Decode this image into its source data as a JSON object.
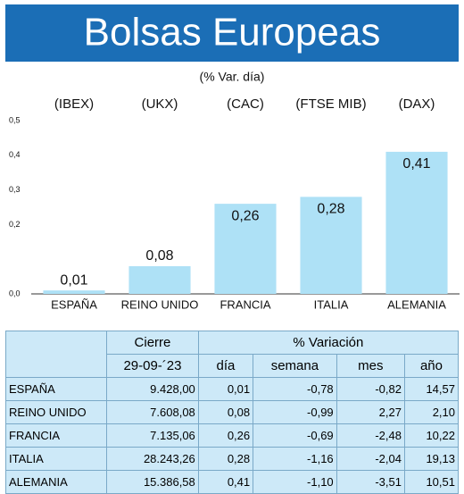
{
  "chart_data": {
    "type": "bar",
    "title": "Bolsas Europeas",
    "subtitle": "(% Var. día)",
    "index_labels": [
      "(IBEX)",
      "(UKX)",
      "(CAC)",
      "(FTSE MIB)",
      "(DAX)"
    ],
    "categories": [
      "ESPAÑA",
      "REINO UNIDO",
      "FRANCIA",
      "ITALIA",
      "ALEMANIA"
    ],
    "values": [
      0.01,
      0.08,
      0.26,
      0.28,
      0.41
    ],
    "value_labels": [
      "0,01",
      "0,08",
      "0,26",
      "0,28",
      "0,41"
    ],
    "color": "#aee1f6",
    "ylim": [
      0,
      0.5
    ],
    "yticks": [
      {
        "value": 0,
        "label": "0,0"
      },
      {
        "value": 0.2,
        "label": "0,2"
      },
      {
        "value": 0.3,
        "label": "0,3"
      },
      {
        "value": 0.4,
        "label": "0,4"
      },
      {
        "value": 0.5,
        "label": "0,5"
      }
    ],
    "grid": false
  },
  "table": {
    "header": [
      "Cierre",
      "% Variación"
    ],
    "subheader": [
      "29-09-´23",
      "día",
      "semana",
      "mes",
      "año"
    ],
    "rows": [
      [
        "ESPAÑA",
        "9.428,00",
        "0,01",
        "-0,78",
        "-0,82",
        "14,57"
      ],
      [
        "REINO UNIDO",
        "7.608,08",
        "0,08",
        "-0,99",
        "2,27",
        "2,10"
      ],
      [
        "FRANCIA",
        "7.135,06",
        "0,26",
        "-0,69",
        "-2,48",
        "10,22"
      ],
      [
        "ITALIA",
        "28.243,26",
        "0,28",
        "-1,16",
        "-2,04",
        "19,13"
      ],
      [
        "ALEMANIA",
        "15.386,58",
        "0,41",
        "-1,10",
        "-3,51",
        "10,51"
      ]
    ]
  }
}
